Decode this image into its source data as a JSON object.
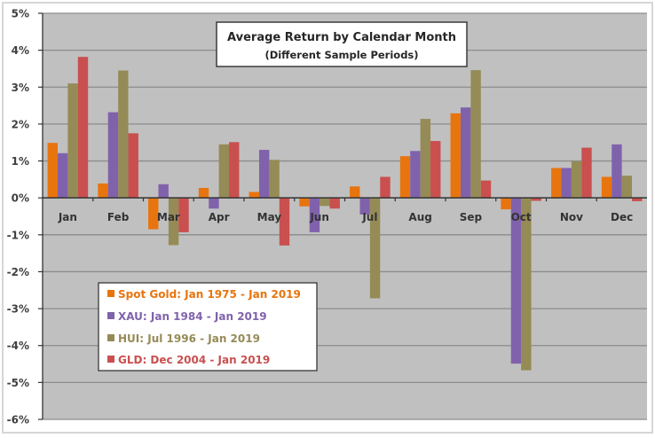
{
  "chart_data": {
    "type": "bar",
    "title": "Average Return by Calendar Month",
    "subtitle": "(Different Sample Periods)",
    "xlabel": "",
    "ylabel": "",
    "ylim": [
      -0.06,
      0.05
    ],
    "yticks": [
      0.05,
      0.04,
      0.03,
      0.02,
      0.01,
      0.0,
      -0.01,
      -0.02,
      -0.03,
      -0.04,
      -0.05,
      -0.06
    ],
    "ytick_labels": [
      "5%",
      "4%",
      "3%",
      "2%",
      "1%",
      "0%",
      "-1%",
      "-2%",
      "-3%",
      "-4%",
      "-5%",
      "-6%"
    ],
    "grid": true,
    "legend_position": "bottom-left",
    "categories": [
      "Jan",
      "Feb",
      "Mar",
      "Apr",
      "May",
      "Jun",
      "Jul",
      "Aug",
      "Sep",
      "Oct",
      "Nov",
      "Dec"
    ],
    "series": [
      {
        "name": "Spot Gold: Jan 1975 - Jan 2019",
        "color": "#E8740E",
        "values": [
          0.0149,
          0.0039,
          -0.0085,
          0.0027,
          0.0016,
          -0.0023,
          0.0031,
          0.0113,
          0.0229,
          -0.0031,
          0.0081,
          0.0057
        ]
      },
      {
        "name": "XAU: Jan 1984 - Jan 2019",
        "color": "#8062AC",
        "values": [
          0.0121,
          0.0232,
          0.0037,
          -0.0029,
          0.013,
          -0.0093,
          -0.0045,
          0.0127,
          0.0245,
          -0.0449,
          0.0081,
          0.0145
        ]
      },
      {
        "name": "HUI: Jul 1996 - Jan 2019",
        "color": "#958B56",
        "values": [
          0.031,
          0.0345,
          -0.0128,
          0.0145,
          0.0103,
          -0.0022,
          -0.0272,
          0.0214,
          0.0346,
          -0.0467,
          0.0099,
          0.006
        ]
      },
      {
        "name": "GLD: Dec 2004 - Jan 2019",
        "color": "#C9504F",
        "values": [
          0.0382,
          0.0175,
          -0.0093,
          0.0151,
          -0.0129,
          -0.0029,
          0.0057,
          0.0154,
          0.0047,
          -0.0008,
          0.0136,
          -0.0009
        ]
      }
    ],
    "plot_background": "#C0C0C0",
    "gridline_color": "#8C8C8C"
  }
}
